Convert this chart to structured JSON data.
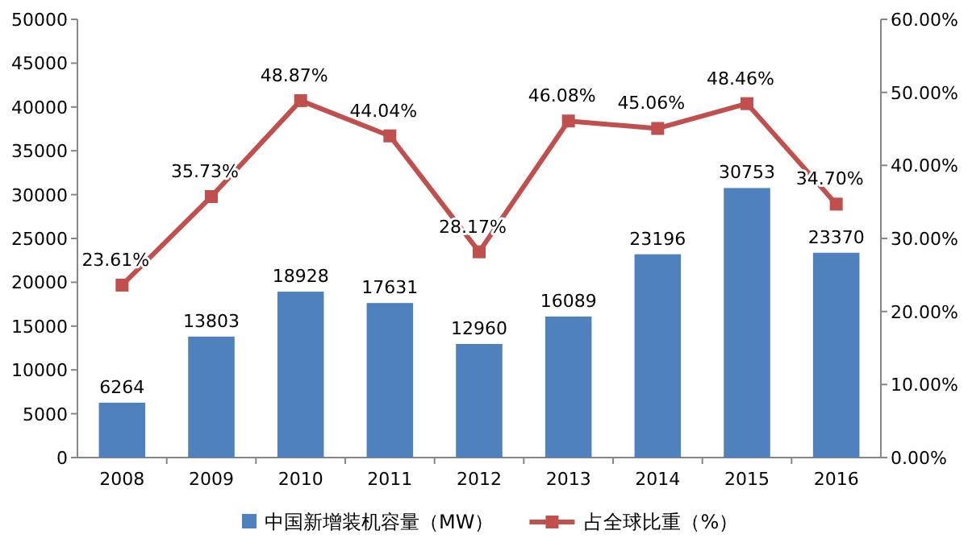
{
  "chart_data": {
    "type": "bar",
    "categories": [
      "2008",
      "2009",
      "2010",
      "2011",
      "2012",
      "2013",
      "2014",
      "2015",
      "2016"
    ],
    "series": [
      {
        "name": "中国新增装机容量（MW）",
        "color": "#4f81bd",
        "values": [
          6264,
          13803,
          18928,
          17631,
          12960,
          16089,
          23196,
          30753,
          23370
        ],
        "value_labels": [
          "6264",
          "13803",
          "18928",
          "17631",
          "12960",
          "16089",
          "23196",
          "30753",
          "23370"
        ]
      },
      {
        "name": "占全球比重（%）",
        "type": "line",
        "axis": "y2",
        "color": "#c0504d",
        "values": [
          23.61,
          35.73,
          48.87,
          44.04,
          28.17,
          46.08,
          45.06,
          48.46,
          34.7
        ],
        "value_labels": [
          "23.61%",
          "35.73%",
          "48.87%",
          "44.04%",
          "28.17%",
          "46.08%",
          "45.06%",
          "48.46%",
          "34.70%"
        ]
      }
    ],
    "ylim": [
      0,
      50000
    ],
    "yticks": [
      0,
      5000,
      10000,
      15000,
      20000,
      25000,
      30000,
      35000,
      40000,
      45000,
      50000
    ],
    "y2lim": [
      0,
      60
    ],
    "y2ticks": [
      {
        "value": 0,
        "label": "0.00%"
      },
      {
        "value": 10,
        "label": "10.00%"
      },
      {
        "value": 20,
        "label": "20.00%"
      },
      {
        "value": 30,
        "label": "30.00%"
      },
      {
        "value": 40,
        "label": "40.00%"
      },
      {
        "value": 50,
        "label": "50.00%"
      },
      {
        "value": 60,
        "label": "60.00%"
      }
    ],
    "marker": "square",
    "legend": "bottom",
    "grid": false
  }
}
